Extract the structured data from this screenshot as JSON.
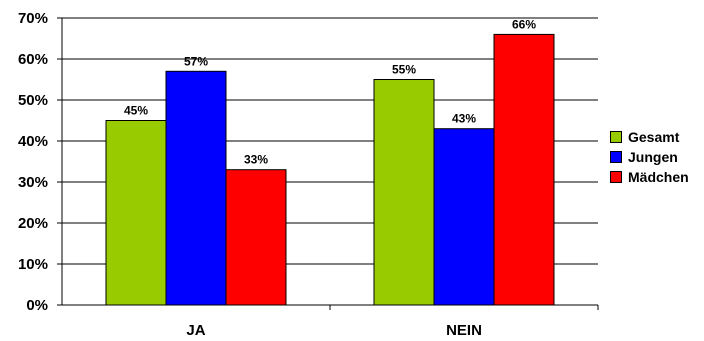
{
  "chart_data": {
    "type": "bar",
    "categories": [
      "JA",
      "NEIN"
    ],
    "series": [
      {
        "name": "Gesamt",
        "color": "#99cc00",
        "values": [
          45,
          55
        ]
      },
      {
        "name": "Jungen",
        "color": "#0000ff",
        "values": [
          57,
          43
        ]
      },
      {
        "name": "Mädchen",
        "color": "#ff0000",
        "values": [
          33,
          66
        ]
      }
    ],
    "data_labels": [
      [
        "45%",
        "55%"
      ],
      [
        "57%",
        "43%"
      ],
      [
        "33%",
        "66%"
      ]
    ],
    "yticks": [
      "0%",
      "10%",
      "20%",
      "30%",
      "40%",
      "50%",
      "60%",
      "70%"
    ],
    "ylim": [
      0,
      70
    ],
    "legend_position": "right"
  }
}
